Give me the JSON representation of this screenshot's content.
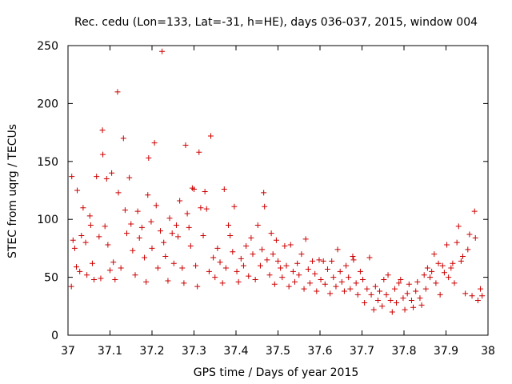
{
  "chart_data": {
    "type": "scatter",
    "title": "Rec. cedu (Lon=133, Lat=-31, h=HE), days 036-037, 2015, window 004",
    "xlabel": "GPS time / Days of year 2015",
    "ylabel": "STEC from uqrg / TECUs",
    "xlim": [
      37,
      38
    ],
    "ylim": [
      0,
      250
    ],
    "xticks": [
      {
        "value": 37,
        "label": "37"
      },
      {
        "value": 37.1,
        "label": "37.1"
      },
      {
        "value": 37.2,
        "label": "37.2"
      },
      {
        "value": 37.3,
        "label": "37.3"
      },
      {
        "value": 37.4,
        "label": "37.4"
      },
      {
        "value": 37.5,
        "label": "37.5"
      },
      {
        "value": 37.6,
        "label": "37.6"
      },
      {
        "value": 37.7,
        "label": "37.7"
      },
      {
        "value": 37.8,
        "label": "37.8"
      },
      {
        "value": 37.9,
        "label": "37.9"
      },
      {
        "value": 38,
        "label": "38"
      }
    ],
    "yticks": [
      {
        "value": 0,
        "label": "0"
      },
      {
        "value": 50,
        "label": "50"
      },
      {
        "value": 100,
        "label": "100"
      },
      {
        "value": 150,
        "label": "150"
      },
      {
        "value": 200,
        "label": "200"
      },
      {
        "value": 250,
        "label": "250"
      }
    ],
    "grid": false,
    "marker": "+",
    "color": "#cc0000",
    "series": [
      {
        "name": "STEC",
        "points": [
          [
            37.008,
            42
          ],
          [
            37.009,
            137
          ],
          [
            37.012,
            82
          ],
          [
            37.016,
            75
          ],
          [
            37.02,
            59
          ],
          [
            37.022,
            125
          ],
          [
            37.028,
            55
          ],
          [
            37.032,
            86
          ],
          [
            37.036,
            110
          ],
          [
            37.042,
            80
          ],
          [
            37.045,
            52
          ],
          [
            37.052,
            103
          ],
          [
            37.054,
            95
          ],
          [
            37.058,
            62
          ],
          [
            37.062,
            48
          ],
          [
            37.068,
            137
          ],
          [
            37.074,
            85
          ],
          [
            37.078,
            49
          ],
          [
            37.082,
            177
          ],
          [
            37.083,
            156
          ],
          [
            37.088,
            94
          ],
          [
            37.092,
            135
          ],
          [
            37.095,
            78
          ],
          [
            37.1,
            56
          ],
          [
            37.104,
            140
          ],
          [
            37.108,
            63
          ],
          [
            37.112,
            48
          ],
          [
            37.118,
            210
          ],
          [
            37.12,
            123
          ],
          [
            37.126,
            58
          ],
          [
            37.132,
            170
          ],
          [
            37.136,
            108
          ],
          [
            37.14,
            88
          ],
          [
            37.146,
            136
          ],
          [
            37.15,
            96
          ],
          [
            37.154,
            73
          ],
          [
            37.16,
            52
          ],
          [
            37.166,
            107
          ],
          [
            37.17,
            84
          ],
          [
            37.176,
            93
          ],
          [
            37.182,
            67
          ],
          [
            37.186,
            46
          ],
          [
            37.19,
            121
          ],
          [
            37.192,
            153
          ],
          [
            37.198,
            98
          ],
          [
            37.2,
            75
          ],
          [
            37.206,
            166
          ],
          [
            37.21,
            112
          ],
          [
            37.214,
            58
          ],
          [
            37.22,
            90
          ],
          [
            37.224,
            245
          ],
          [
            37.228,
            80
          ],
          [
            37.232,
            68
          ],
          [
            37.238,
            47
          ],
          [
            37.242,
            101
          ],
          [
            37.248,
            88
          ],
          [
            37.252,
            62
          ],
          [
            37.258,
            95
          ],
          [
            37.262,
            85
          ],
          [
            37.266,
            116
          ],
          [
            37.272,
            58
          ],
          [
            37.276,
            45
          ],
          [
            37.28,
            164
          ],
          [
            37.284,
            105
          ],
          [
            37.288,
            93
          ],
          [
            37.292,
            77
          ],
          [
            37.296,
            127
          ],
          [
            37.3,
            126
          ],
          [
            37.304,
            60
          ],
          [
            37.308,
            42
          ],
          [
            37.312,
            158
          ],
          [
            37.316,
            110
          ],
          [
            37.322,
            86
          ],
          [
            37.326,
            124
          ],
          [
            37.33,
            109
          ],
          [
            37.336,
            55
          ],
          [
            37.34,
            172
          ],
          [
            37.346,
            67
          ],
          [
            37.35,
            50
          ],
          [
            37.356,
            75
          ],
          [
            37.362,
            63
          ],
          [
            37.368,
            45
          ],
          [
            37.372,
            126
          ],
          [
            37.376,
            58
          ],
          [
            37.382,
            95
          ],
          [
            37.386,
            86
          ],
          [
            37.392,
            72
          ],
          [
            37.396,
            111
          ],
          [
            37.402,
            55
          ],
          [
            37.406,
            46
          ],
          [
            37.412,
            66
          ],
          [
            37.418,
            60
          ],
          [
            37.424,
            77
          ],
          [
            37.43,
            51
          ],
          [
            37.436,
            84
          ],
          [
            37.44,
            70
          ],
          [
            37.446,
            48
          ],
          [
            37.452,
            95
          ],
          [
            37.458,
            60
          ],
          [
            37.462,
            74
          ],
          [
            37.466,
            123
          ],
          [
            37.468,
            111
          ],
          [
            37.474,
            65
          ],
          [
            37.48,
            52
          ],
          [
            37.484,
            88
          ],
          [
            37.488,
            70
          ],
          [
            37.492,
            44
          ],
          [
            37.496,
            82
          ],
          [
            37.5,
            64
          ],
          [
            37.506,
            58
          ],
          [
            37.51,
            50
          ],
          [
            37.516,
            77
          ],
          [
            37.52,
            60
          ],
          [
            37.526,
            42
          ],
          [
            37.53,
            78
          ],
          [
            37.536,
            55
          ],
          [
            37.54,
            46
          ],
          [
            37.546,
            62
          ],
          [
            37.55,
            52
          ],
          [
            37.556,
            70
          ],
          [
            37.562,
            40
          ],
          [
            37.566,
            83
          ],
          [
            37.572,
            57
          ],
          [
            37.576,
            45
          ],
          [
            37.582,
            64
          ],
          [
            37.588,
            53
          ],
          [
            37.592,
            38
          ],
          [
            37.598,
            65
          ],
          [
            37.602,
            48
          ],
          [
            37.608,
            64
          ],
          [
            37.612,
            44
          ],
          [
            37.618,
            57
          ],
          [
            37.624,
            36
          ],
          [
            37.628,
            64
          ],
          [
            37.632,
            50
          ],
          [
            37.638,
            42
          ],
          [
            37.642,
            74
          ],
          [
            37.648,
            55
          ],
          [
            37.652,
            46
          ],
          [
            37.658,
            38
          ],
          [
            37.662,
            60
          ],
          [
            37.668,
            50
          ],
          [
            37.672,
            40
          ],
          [
            37.678,
            68
          ],
          [
            37.68,
            65
          ],
          [
            37.686,
            45
          ],
          [
            37.69,
            35
          ],
          [
            37.696,
            55
          ],
          [
            37.702,
            48
          ],
          [
            37.706,
            28
          ],
          [
            37.712,
            40
          ],
          [
            37.718,
            67
          ],
          [
            37.722,
            35
          ],
          [
            37.728,
            22
          ],
          [
            37.732,
            42
          ],
          [
            37.738,
            30
          ],
          [
            37.742,
            38
          ],
          [
            37.748,
            25
          ],
          [
            37.752,
            48
          ],
          [
            37.758,
            35
          ],
          [
            37.762,
            52
          ],
          [
            37.768,
            30
          ],
          [
            37.772,
            20
          ],
          [
            37.778,
            40
          ],
          [
            37.782,
            28
          ],
          [
            37.788,
            45
          ],
          [
            37.792,
            48
          ],
          [
            37.798,
            32
          ],
          [
            37.802,
            22
          ],
          [
            37.808,
            36
          ],
          [
            37.812,
            44
          ],
          [
            37.818,
            30
          ],
          [
            37.822,
            24
          ],
          [
            37.828,
            38
          ],
          [
            37.832,
            46
          ],
          [
            37.838,
            32
          ],
          [
            37.842,
            26
          ],
          [
            37.848,
            52
          ],
          [
            37.852,
            40
          ],
          [
            37.856,
            58
          ],
          [
            37.862,
            50
          ],
          [
            37.866,
            55
          ],
          [
            37.872,
            70
          ],
          [
            37.876,
            45
          ],
          [
            37.882,
            62
          ],
          [
            37.886,
            35
          ],
          [
            37.892,
            60
          ],
          [
            37.896,
            54
          ],
          [
            37.902,
            78
          ],
          [
            37.906,
            50
          ],
          [
            37.912,
            58
          ],
          [
            37.916,
            62
          ],
          [
            37.92,
            45
          ],
          [
            37.926,
            80
          ],
          [
            37.93,
            94
          ],
          [
            37.936,
            64
          ],
          [
            37.94,
            68
          ],
          [
            37.946,
            36
          ],
          [
            37.952,
            74
          ],
          [
            37.956,
            87
          ],
          [
            37.962,
            34
          ],
          [
            37.968,
            107
          ],
          [
            37.97,
            84
          ],
          [
            37.976,
            30
          ],
          [
            37.982,
            40
          ],
          [
            37.986,
            34
          ]
        ]
      }
    ]
  }
}
